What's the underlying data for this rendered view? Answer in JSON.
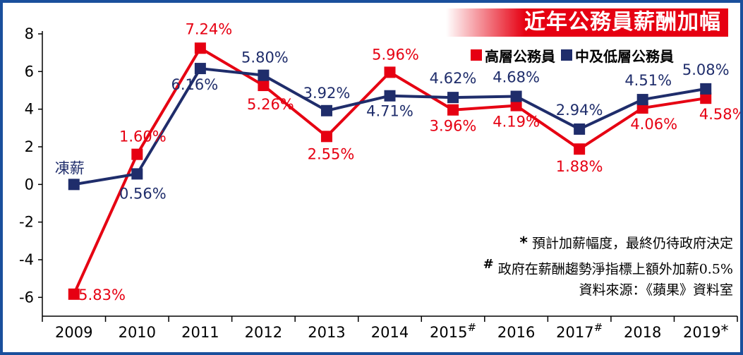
{
  "title": "近年公務員薪酬加幅",
  "colors": {
    "frame": "#1a4f9c",
    "senior": "#e60012",
    "junior": "#1f2d6b",
    "title_bg": "#e60012"
  },
  "chart_data": {
    "type": "line",
    "categories": [
      "2009",
      "2010",
      "2011",
      "2012",
      "2013",
      "2014",
      "2015",
      "2016",
      "2017",
      "2018",
      "2019"
    ],
    "category_marks": [
      "",
      "",
      "",
      "",
      "",
      "",
      "#",
      "",
      "#",
      "",
      "*"
    ],
    "ylim": [
      -7,
      8
    ],
    "yticks": [
      -6,
      -4,
      -2,
      0,
      2,
      4,
      6,
      8
    ],
    "ytick_labels": [
      "-6",
      "-4",
      "-2",
      "0",
      "2",
      "4",
      "6",
      "8"
    ],
    "grid": false,
    "legend_position": "top-right",
    "series": [
      {
        "name": "高層公務員",
        "color": "#e60012",
        "values": [
          -5.83,
          1.6,
          7.24,
          5.26,
          2.55,
          5.96,
          3.96,
          4.19,
          1.88,
          4.06,
          4.58
        ],
        "labels": [
          "-5.83%",
          "1.60%",
          "7.24%",
          "5.26%",
          "2.55%",
          "5.96%",
          "3.96%",
          "4.19%",
          "1.88%",
          "4.06%",
          "4.58%"
        ]
      },
      {
        "name": "中及低層公務員",
        "color": "#1f2d6b",
        "values": [
          0,
          0.56,
          6.16,
          5.8,
          3.92,
          4.71,
          4.62,
          4.68,
          2.94,
          4.51,
          5.08
        ],
        "labels": [
          "",
          "0.56%",
          "6.16%",
          "5.80%",
          "3.92%",
          "4.71%",
          "4.62%",
          "4.68%",
          "2.94%",
          "4.51%",
          "5.08%"
        ]
      }
    ],
    "annotations": [
      {
        "text": "凍薪",
        "category": "2009",
        "series": "中及低層公務員"
      }
    ]
  },
  "notes": {
    "star_mark": "*",
    "star_text": "預計加薪幅度，最終仍待政府決定",
    "hash_mark": "#",
    "hash_text": "政府在薪酬趨勢淨指標上額外加薪0.5%",
    "source": "資料來源：《蘋果》資料室"
  }
}
